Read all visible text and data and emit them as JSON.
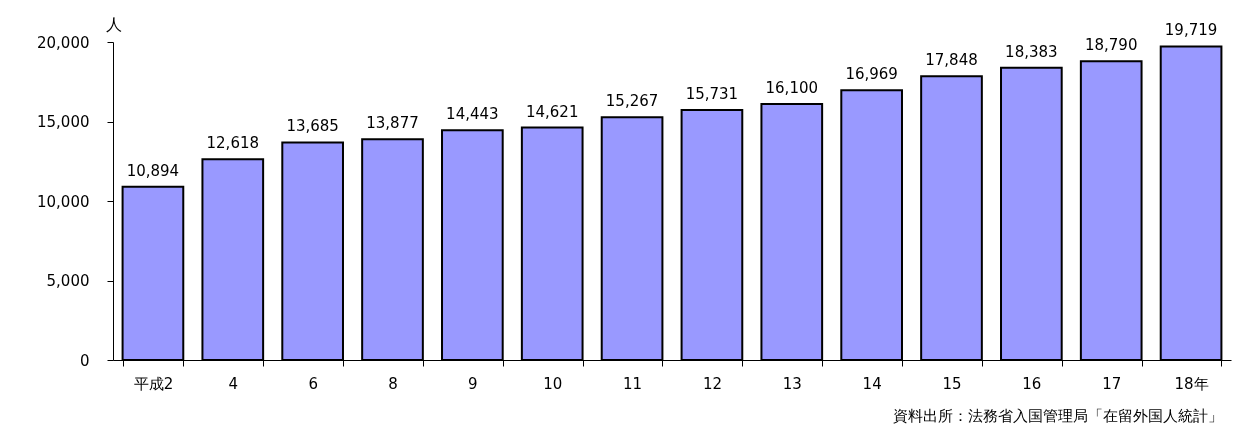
{
  "chart_data": {
    "type": "bar",
    "ylabel": "人",
    "categories": [
      "平成2",
      "4",
      "6",
      "8",
      "9",
      "10",
      "11",
      "12",
      "13",
      "14",
      "15",
      "16",
      "17",
      "18年"
    ],
    "values": [
      10894,
      12618,
      13685,
      13877,
      14443,
      14621,
      15267,
      15731,
      16100,
      16969,
      17848,
      18383,
      18790,
      19719
    ],
    "value_labels": [
      "10,894",
      "12,618",
      "13,685",
      "13,877",
      "14,443",
      "14,621",
      "15,267",
      "15,731",
      "16,100",
      "16,969",
      "17,848",
      "18,383",
      "18,790",
      "19,719"
    ],
    "color": "#9999ff",
    "ylim": [
      0,
      20000
    ],
    "yticks": [
      0,
      {
        "value": 5000,
        "label": "5,000"
      },
      {
        "value": 10000,
        "label": "10,000"
      },
      {
        "value": 15000,
        "label": "15,000"
      },
      {
        "value": 20000,
        "label": "20,000"
      }
    ],
    "annotations": [
      "資料出所：法務省入国管理局「在留外国人統計」"
    ]
  }
}
